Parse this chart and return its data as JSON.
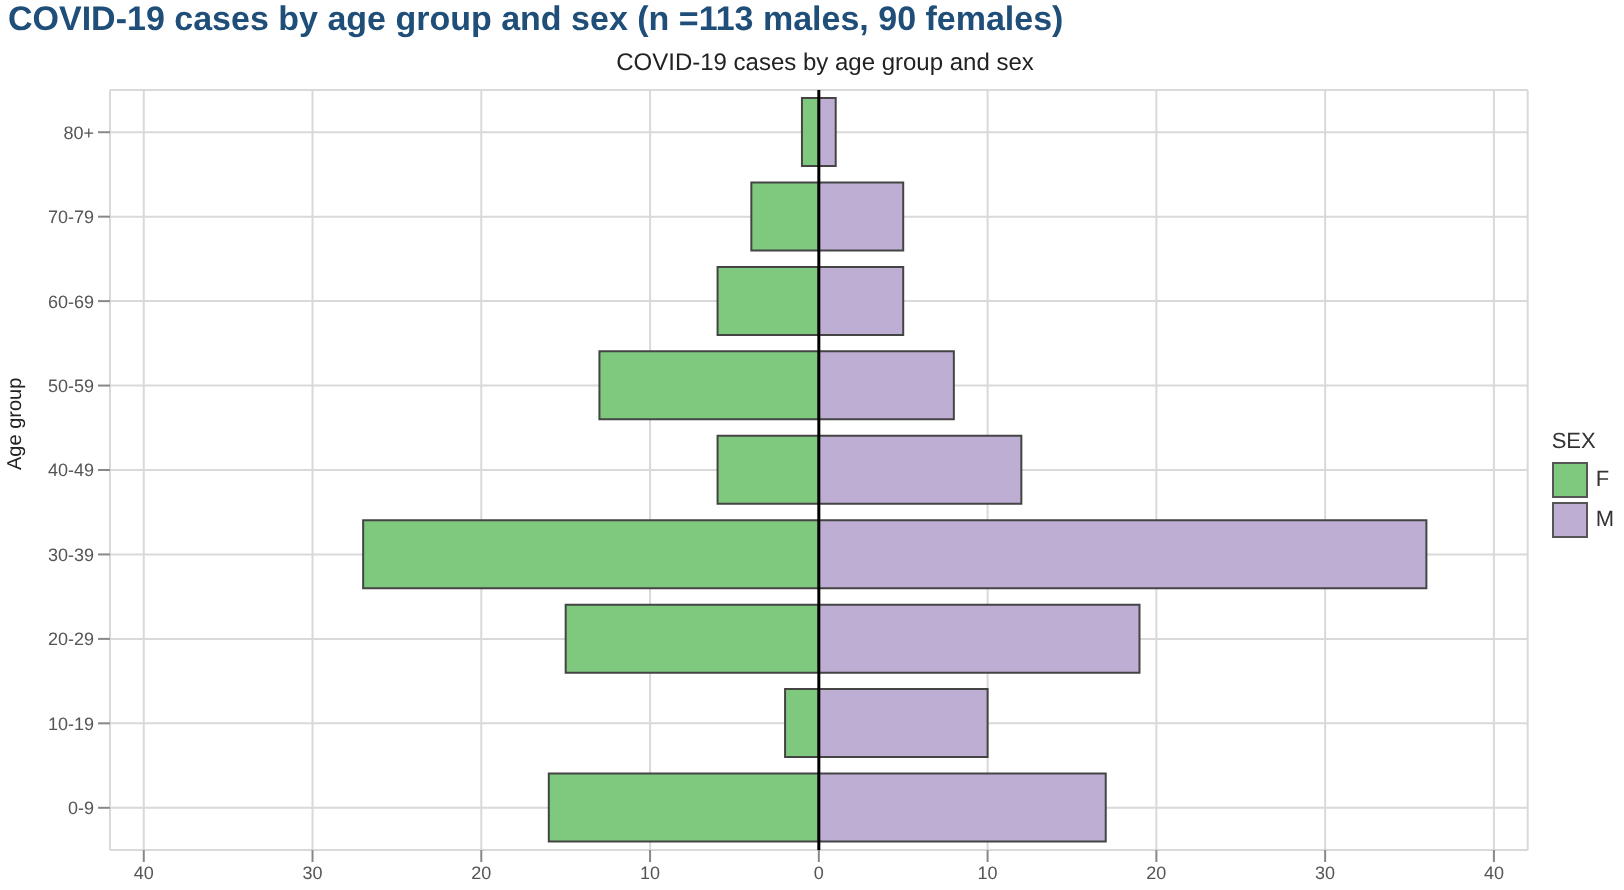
{
  "chart_data": {
    "type": "bar",
    "orientation": "horizontal",
    "stacked": true,
    "title": "COVID-19 cases by age group and sex (n =113 males, 90 females)",
    "subtitle": "COVID-19 cases by age group and sex",
    "ylabel": "Age group",
    "legend_title": "SEX",
    "categories": [
      "80+",
      "70-79",
      "60-69",
      "50-59",
      "40-49",
      "30-39",
      "20-29",
      "10-19",
      "0-9"
    ],
    "series": [
      {
        "name": "F",
        "color": "#7fc97f",
        "values": [
          -1,
          -4,
          -6,
          -13,
          -6,
          -27,
          -15,
          -2,
          -16
        ]
      },
      {
        "name": "M",
        "color": "#beaed4",
        "values": [
          1,
          5,
          5,
          8,
          12,
          36,
          19,
          10,
          17
        ]
      }
    ],
    "xlim": [
      -42,
      42
    ],
    "xticks": [
      {
        "value": -40,
        "label": "40"
      },
      {
        "value": -30,
        "label": "30"
      },
      {
        "value": -20,
        "label": "20"
      },
      {
        "value": -10,
        "label": "10"
      },
      0,
      10,
      20,
      30,
      40
    ],
    "ref_lines": [
      {
        "axis": "x",
        "value": 0,
        "color": "#000000"
      }
    ],
    "grid": true,
    "legend": "right"
  }
}
